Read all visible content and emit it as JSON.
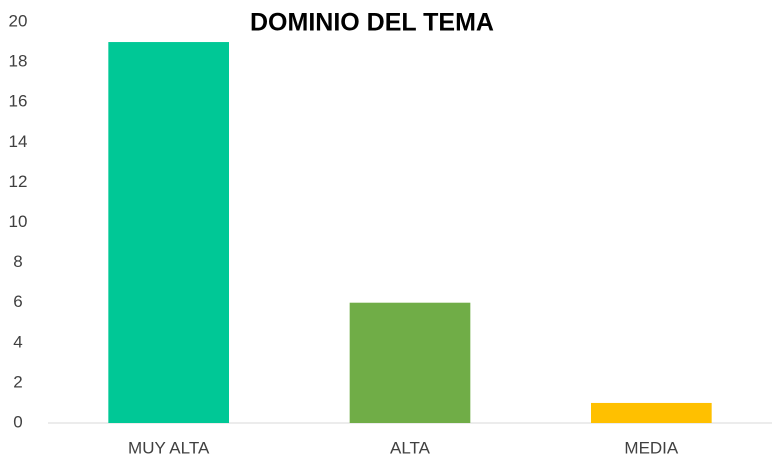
{
  "chart_data": {
    "type": "bar",
    "title": "DOMINIO DEL TEMA",
    "categories": [
      "MUY ALTA",
      "ALTA",
      "MEDIA"
    ],
    "values": [
      19,
      6,
      1
    ],
    "colors": [
      "#00c896",
      "#70ad47",
      "#ffc000"
    ],
    "ylim": [
      0,
      20
    ],
    "yticks": [
      0,
      2,
      4,
      6,
      8,
      10,
      12,
      14,
      16,
      18,
      20
    ],
    "grid": false
  }
}
